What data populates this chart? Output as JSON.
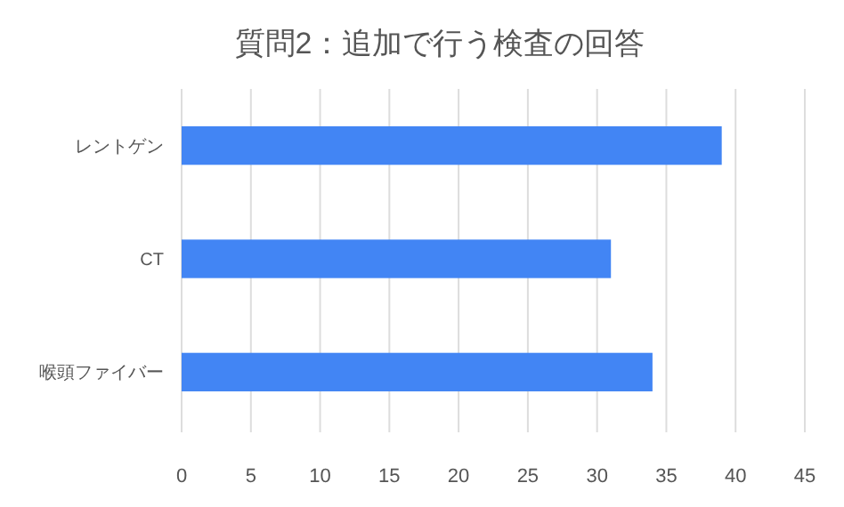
{
  "chart_data": {
    "type": "bar",
    "orientation": "horizontal",
    "title": "質問2：追加で行う検査の回答",
    "categories": [
      "レントゲン",
      "CT",
      "喉頭ファイバー"
    ],
    "values": [
      39,
      31,
      34
    ],
    "color": "#4285f4",
    "xlim": [
      0,
      45
    ],
    "xticks": [
      0,
      5,
      10,
      15,
      20,
      25,
      30,
      35,
      40,
      45
    ],
    "grid": "x"
  }
}
